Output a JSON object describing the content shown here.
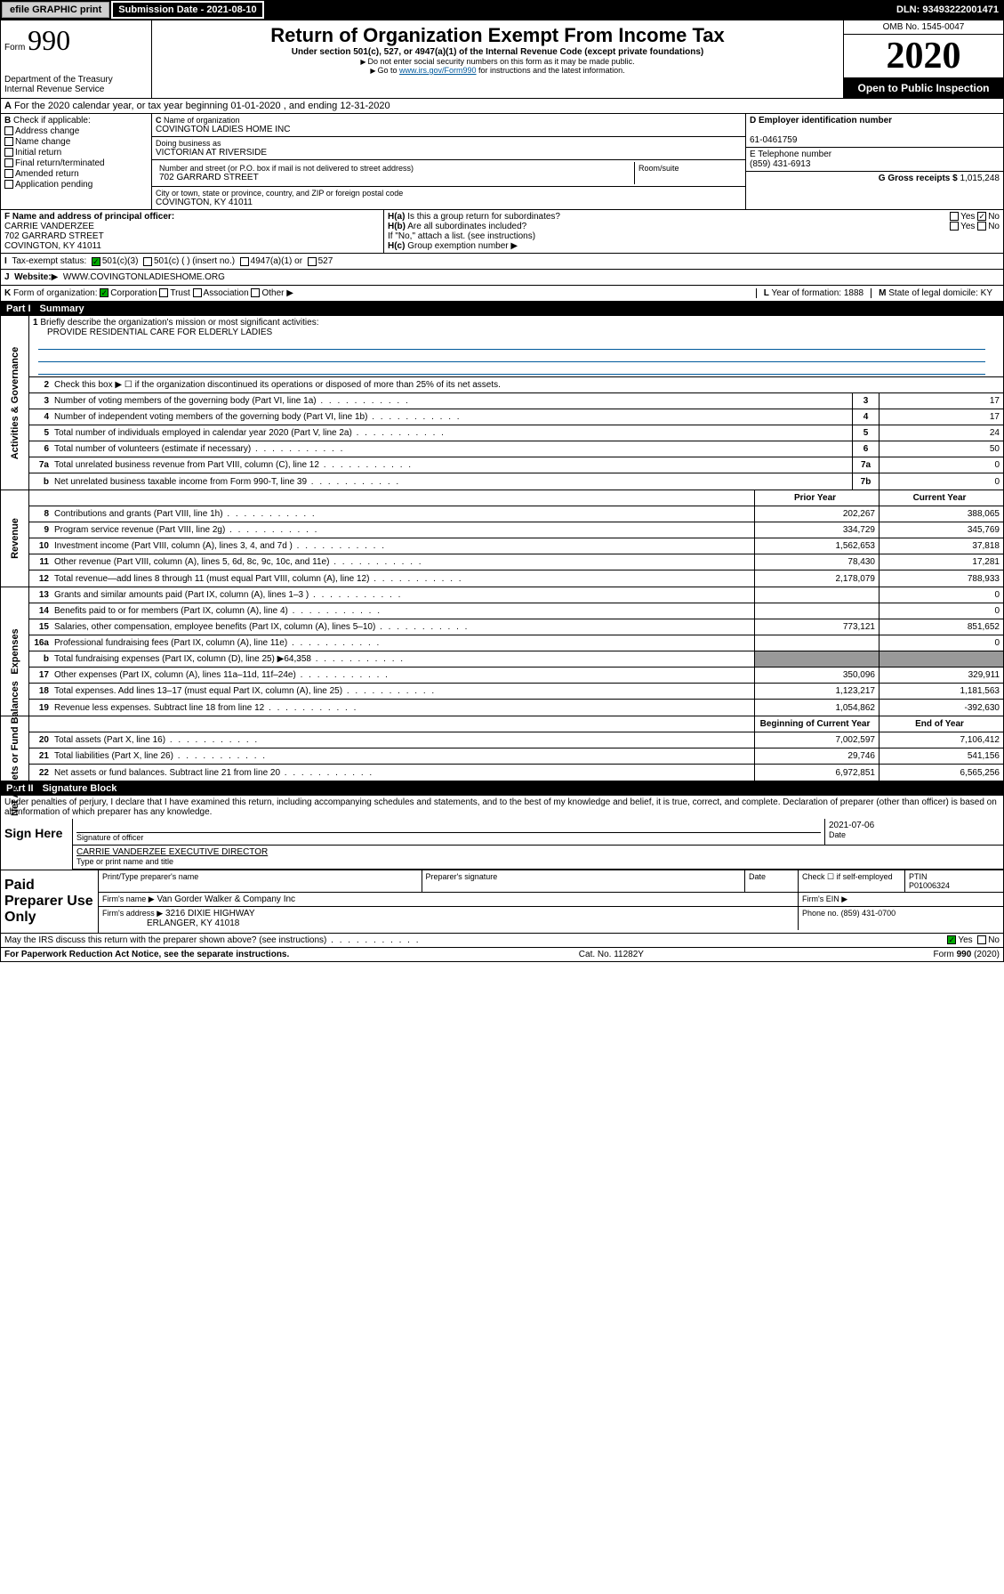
{
  "header_bar": {
    "efile": "efile GRAPHIC print",
    "sub_date_label": "Submission Date - 2021-08-10",
    "dln": "DLN: 93493222001471"
  },
  "top": {
    "form": "Form",
    "num": "990",
    "dept": "Department of the Treasury",
    "irs": "Internal Revenue Service",
    "title": "Return of Organization Exempt From Income Tax",
    "subtitle": "Under section 501(c), 527, or 4947(a)(1) of the Internal Revenue Code (except private foundations)",
    "note1": "Do not enter social security numbers on this form as it may be made public.",
    "note2_pre": "Go to ",
    "note2_link": "www.irs.gov/Form990",
    "note2_post": " for instructions and the latest information.",
    "omb": "OMB No. 1545-0047",
    "year": "2020",
    "open": "Open to Public Inspection"
  },
  "line_a": "For the 2020 calendar year, or tax year beginning 01-01-2020   , and ending 12-31-2020",
  "box_b": {
    "label": "Check if applicable:",
    "opts": [
      "Address change",
      "Name change",
      "Initial return",
      "Final return/terminated",
      "Amended return",
      "Application pending"
    ]
  },
  "box_c": {
    "name_label": "Name of organization",
    "name": "COVINGTON LADIES HOME INC",
    "dba_label": "Doing business as",
    "dba": "VICTORIAN AT RIVERSIDE",
    "addr_label": "Number and street (or P.O. box if mail is not delivered to street address)",
    "room_label": "Room/suite",
    "addr": "702 GARRARD STREET",
    "city_label": "City or town, state or province, country, and ZIP or foreign postal code",
    "city": "COVINGTON, KY  41011"
  },
  "box_d": {
    "label": "D Employer identification number",
    "val": "61-0461759"
  },
  "box_e": {
    "label": "E Telephone number",
    "val": "(859) 431-6913"
  },
  "box_g": {
    "label": "G Gross receipts $",
    "val": "1,015,248"
  },
  "box_f": {
    "label": "F  Name and address of principal officer:",
    "name": "CARRIE VANDERZEE",
    "addr1": "702 GARRARD STREET",
    "addr2": "COVINGTON, KY  41011"
  },
  "box_h": {
    "ha": "Is this a group return for subordinates?",
    "hb": "Are all subordinates included?",
    "hnote": "If \"No,\" attach a list. (see instructions)",
    "hc": "Group exemption number"
  },
  "row_i": {
    "label": "Tax-exempt status:",
    "c3": "501(c)(3)",
    "c": "501(c) (   )  (insert no.)",
    "a1": "4947(a)(1) or",
    "s527": "527"
  },
  "row_j": {
    "label": "Website:",
    "val": "WWW.COVINGTONLADIESHOME.ORG"
  },
  "row_k": {
    "label": "Form of organization:",
    "corp": "Corporation",
    "trust": "Trust",
    "assoc": "Association",
    "other": "Other",
    "l_label": "Year of formation:",
    "l_val": "1888",
    "m_label": "State of legal domicile:",
    "m_val": "KY"
  },
  "part1": {
    "title": "Part I",
    "subtitle": "Summary",
    "sections": {
      "gov": "Activities & Governance",
      "rev": "Revenue",
      "exp": "Expenses",
      "net": "Net Assets or Fund Balances"
    },
    "mission_label": "Briefly describe the organization's mission or most significant activities:",
    "mission": "PROVIDE RESIDENTIAL CARE FOR ELDERLY LADIES",
    "line2": "Check this box ▶ ☐  if the organization discontinued its operations or disposed of more than 25% of its net assets.",
    "gov_rows": [
      {
        "n": "3",
        "d": "Number of voting members of the governing body (Part VI, line 1a)",
        "b": "3",
        "v": "17"
      },
      {
        "n": "4",
        "d": "Number of independent voting members of the governing body (Part VI, line 1b)",
        "b": "4",
        "v": "17"
      },
      {
        "n": "5",
        "d": "Total number of individuals employed in calendar year 2020 (Part V, line 2a)",
        "b": "5",
        "v": "24"
      },
      {
        "n": "6",
        "d": "Total number of volunteers (estimate if necessary)",
        "b": "6",
        "v": "50"
      },
      {
        "n": "7a",
        "d": "Total unrelated business revenue from Part VIII, column (C), line 12",
        "b": "7a",
        "v": "0"
      },
      {
        "n": "b",
        "d": "Net unrelated business taxable income from Form 990-T, line 39",
        "b": "7b",
        "v": "0"
      }
    ],
    "hdr_prior": "Prior Year",
    "hdr_curr": "Current Year",
    "rev_rows": [
      {
        "n": "8",
        "d": "Contributions and grants (Part VIII, line 1h)",
        "p": "202,267",
        "c": "388,065"
      },
      {
        "n": "9",
        "d": "Program service revenue (Part VIII, line 2g)",
        "p": "334,729",
        "c": "345,769"
      },
      {
        "n": "10",
        "d": "Investment income (Part VIII, column (A), lines 3, 4, and 7d )",
        "p": "1,562,653",
        "c": "37,818"
      },
      {
        "n": "11",
        "d": "Other revenue (Part VIII, column (A), lines 5, 6d, 8c, 9c, 10c, and 11e)",
        "p": "78,430",
        "c": "17,281"
      },
      {
        "n": "12",
        "d": "Total revenue—add lines 8 through 11 (must equal Part VIII, column (A), line 12)",
        "p": "2,178,079",
        "c": "788,933"
      }
    ],
    "exp_rows": [
      {
        "n": "13",
        "d": "Grants and similar amounts paid (Part IX, column (A), lines 1–3 )",
        "p": "",
        "c": "0"
      },
      {
        "n": "14",
        "d": "Benefits paid to or for members (Part IX, column (A), line 4)",
        "p": "",
        "c": "0"
      },
      {
        "n": "15",
        "d": "Salaries, other compensation, employee benefits (Part IX, column (A), lines 5–10)",
        "p": "773,121",
        "c": "851,652"
      },
      {
        "n": "16a",
        "d": "Professional fundraising fees (Part IX, column (A), line 11e)",
        "p": "",
        "c": "0"
      },
      {
        "n": "b",
        "d": "Total fundraising expenses (Part IX, column (D), line 25) ▶64,358",
        "p": "__blank__",
        "c": "__blank__"
      },
      {
        "n": "17",
        "d": "Other expenses (Part IX, column (A), lines 11a–11d, 11f–24e)",
        "p": "350,096",
        "c": "329,911"
      },
      {
        "n": "18",
        "d": "Total expenses. Add lines 13–17 (must equal Part IX, column (A), line 25)",
        "p": "1,123,217",
        "c": "1,181,563"
      },
      {
        "n": "19",
        "d": "Revenue less expenses. Subtract line 18 from line 12",
        "p": "1,054,862",
        "c": "-392,630"
      }
    ],
    "hdr_beg": "Beginning of Current Year",
    "hdr_end": "End of Year",
    "net_rows": [
      {
        "n": "20",
        "d": "Total assets (Part X, line 16)",
        "p": "7,002,597",
        "c": "7,106,412"
      },
      {
        "n": "21",
        "d": "Total liabilities (Part X, line 26)",
        "p": "29,746",
        "c": "541,156"
      },
      {
        "n": "22",
        "d": "Net assets or fund balances. Subtract line 21 from line 20",
        "p": "6,972,851",
        "c": "6,565,256"
      }
    ]
  },
  "part2": {
    "title": "Part II",
    "subtitle": "Signature Block",
    "perjury": "Under penalties of perjury, I declare that I have examined this return, including accompanying schedules and statements, and to the best of my knowledge and belief, it is true, correct, and complete. Declaration of preparer (other than officer) is based on all information of which preparer has any knowledge.",
    "sign_here": "Sign Here",
    "sig_officer": "Signature of officer",
    "date": "2021-07-06",
    "date_label": "Date",
    "typed": "CARRIE VANDERZEE  EXECUTIVE DIRECTOR",
    "typed_label": "Type or print name and title",
    "paid": "Paid Preparer Use Only",
    "prep_name_label": "Print/Type preparer's name",
    "prep_sig_label": "Preparer's signature",
    "check_self": "Check ☐ if self-employed",
    "ptin_label": "PTIN",
    "ptin": "P01006324",
    "firm_name_label": "Firm's name  ▶",
    "firm_name": "Van Gorder Walker & Company Inc",
    "firm_ein_label": "Firm's EIN ▶",
    "firm_addr_label": "Firm's address ▶",
    "firm_addr1": "3216 DIXIE HIGHWAY",
    "firm_addr2": "ERLANGER, KY  41018",
    "phone_label": "Phone no.",
    "phone": "(859) 431-0700",
    "discuss": "May the IRS discuss this return with the preparer shown above? (see instructions)"
  },
  "footer": {
    "pra": "For Paperwork Reduction Act Notice, see the separate instructions.",
    "cat": "Cat. No. 11282Y",
    "form": "Form 990 (2020)"
  }
}
